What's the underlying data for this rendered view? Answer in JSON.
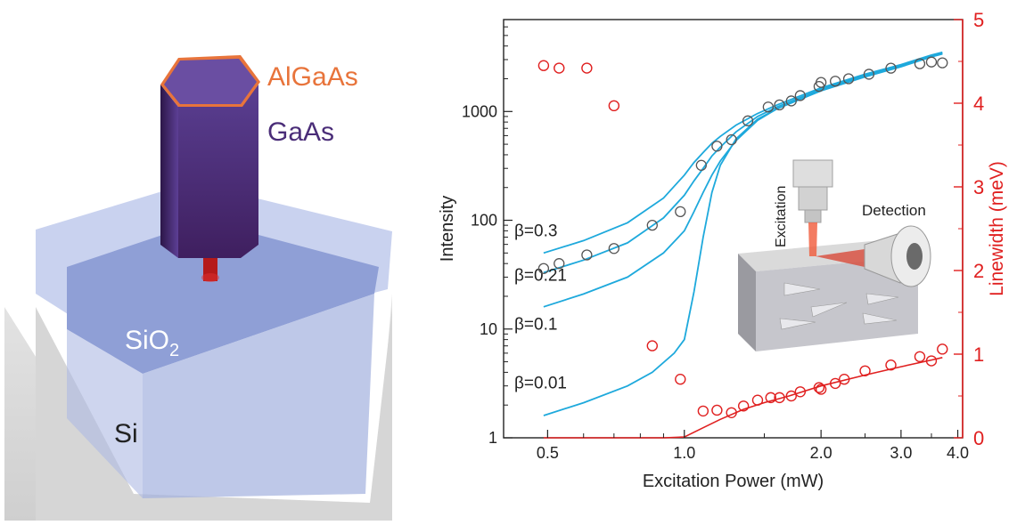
{
  "illustration": {
    "labels": {
      "shell": "AlGaAs",
      "core": "GaAs",
      "oxide_main": "SiO",
      "oxide_sub": "2",
      "substrate": "Si"
    },
    "colors": {
      "shell": "#e8743b",
      "core": "#4a2d78",
      "oxide": "#9aa8d8",
      "substrate": "#d4d4d4",
      "stem": "#b01818"
    }
  },
  "chart_data": {
    "type": "scatter",
    "xlabel": "Excitation Power (mW)",
    "ylabel": "Intensity",
    "y2label": "Linewidth (meV)",
    "x_scale": "log",
    "y_scale": "log",
    "xlim": [
      0.4,
      4.1
    ],
    "ylim": [
      1,
      7000
    ],
    "y2lim": [
      0,
      5
    ],
    "x_ticks": [
      "0.5",
      "1.0",
      "2.0",
      "3.0",
      "4.0"
    ],
    "x_tick_values": [
      0.5,
      1.0,
      2.0,
      3.0,
      4.0
    ],
    "y_ticks": [
      "1",
      "10",
      "100",
      "1000"
    ],
    "y_tick_values": [
      1,
      10,
      100,
      1000
    ],
    "y2_ticks": [
      "0",
      "1",
      "2",
      "3",
      "4",
      "5"
    ],
    "y2_tick_values": [
      0,
      1,
      2,
      3,
      4,
      5
    ],
    "colors": {
      "intensity_points": "#555555",
      "fit_curves": "#1ea9dc",
      "linewidth": "#e02020",
      "axis": "#222222"
    },
    "intensity_points": {
      "x": [
        0.49,
        0.53,
        0.61,
        0.7,
        0.85,
        0.98,
        1.09,
        1.18,
        1.27,
        1.38,
        1.53,
        1.62,
        1.72,
        1.8,
        1.98,
        2.0,
        2.15,
        2.3,
        2.55,
        2.85,
        3.3,
        3.5,
        3.7
      ],
      "y": [
        36,
        40,
        48,
        55,
        90,
        120,
        320,
        480,
        550,
        820,
        1100,
        1150,
        1250,
        1400,
        1700,
        1850,
        1900,
        2000,
        2200,
        2500,
        2750,
        2850,
        2800
      ]
    },
    "fit_curves": [
      {
        "label": "β=0.3",
        "x": [
          0.49,
          0.6,
          0.75,
          0.9,
          1.0,
          1.05,
          1.1,
          1.15,
          1.2,
          1.3,
          1.45,
          1.6,
          2.0,
          2.5,
          3.0,
          3.5,
          3.7
        ],
        "y": [
          50,
          65,
          95,
          160,
          260,
          340,
          420,
          510,
          590,
          750,
          960,
          1150,
          1650,
          2200,
          2700,
          3300,
          3500
        ]
      },
      {
        "label": "β=0.21",
        "x": [
          0.49,
          0.6,
          0.75,
          0.9,
          1.0,
          1.05,
          1.1,
          1.15,
          1.2,
          1.3,
          1.45,
          1.6,
          2.0,
          2.5,
          3.0,
          3.5,
          3.7
        ],
        "y": [
          33,
          43,
          62,
          105,
          170,
          230,
          300,
          390,
          470,
          650,
          900,
          1100,
          1600,
          2150,
          2650,
          3250,
          3450
        ]
      },
      {
        "label": "β=0.1",
        "x": [
          0.49,
          0.6,
          0.75,
          0.9,
          1.0,
          1.05,
          1.1,
          1.15,
          1.2,
          1.3,
          1.45,
          1.6,
          2.0,
          2.5,
          3.0,
          3.5,
          3.7
        ],
        "y": [
          16,
          21,
          30,
          50,
          80,
          120,
          180,
          260,
          350,
          540,
          830,
          1060,
          1560,
          2100,
          2600,
          3200,
          3400
        ]
      },
      {
        "label": "β=0.01",
        "x": [
          0.49,
          0.6,
          0.75,
          0.85,
          0.95,
          1.0,
          1.05,
          1.1,
          1.15,
          1.2,
          1.3,
          1.45,
          1.6,
          2.0,
          2.5,
          3.0,
          3.5,
          3.7
        ],
        "y": [
          1.6,
          2.1,
          3.0,
          4.0,
          6.0,
          8.0,
          22,
          70,
          180,
          320,
          560,
          850,
          1060,
          1550,
          2080,
          2580,
          3180,
          3380
        ]
      }
    ],
    "curve_label_positions": {
      "β=0.3": 80,
      "β=0.21": 31,
      "β=0.1": 11,
      "β=0.01": 3.2
    },
    "linewidth_points": {
      "x": [
        0.49,
        0.53,
        0.61,
        0.7,
        0.85,
        0.98,
        1.1,
        1.18,
        1.27,
        1.35,
        1.45,
        1.55,
        1.62,
        1.72,
        1.8,
        1.98,
        2.0,
        2.15,
        2.25,
        2.5,
        2.85,
        3.3,
        3.5,
        3.7
      ],
      "y": [
        4.45,
        4.42,
        4.42,
        3.97,
        1.1,
        0.7,
        0.32,
        0.33,
        0.3,
        0.38,
        0.45,
        0.48,
        0.48,
        0.5,
        0.55,
        0.6,
        0.58,
        0.65,
        0.7,
        0.8,
        0.87,
        0.97,
        0.92,
        1.06
      ]
    },
    "linewidth_fit": {
      "x": [
        0.49,
        0.7,
        0.9,
        1.0,
        1.1,
        1.2,
        1.35,
        1.5,
        1.7,
        2.0,
        2.5,
        3.0,
        3.5,
        3.7
      ],
      "y": [
        0.0,
        0.0,
        0.0,
        0.01,
        0.12,
        0.22,
        0.34,
        0.42,
        0.5,
        0.62,
        0.75,
        0.85,
        0.93,
        0.96
      ]
    },
    "inset": {
      "labels": {
        "excitation": "Excitation",
        "detection": "Detection"
      },
      "colors": {
        "beam": "#f05a3a",
        "stage": "#c8c8cc",
        "lens": "#dcdcdc"
      }
    }
  }
}
